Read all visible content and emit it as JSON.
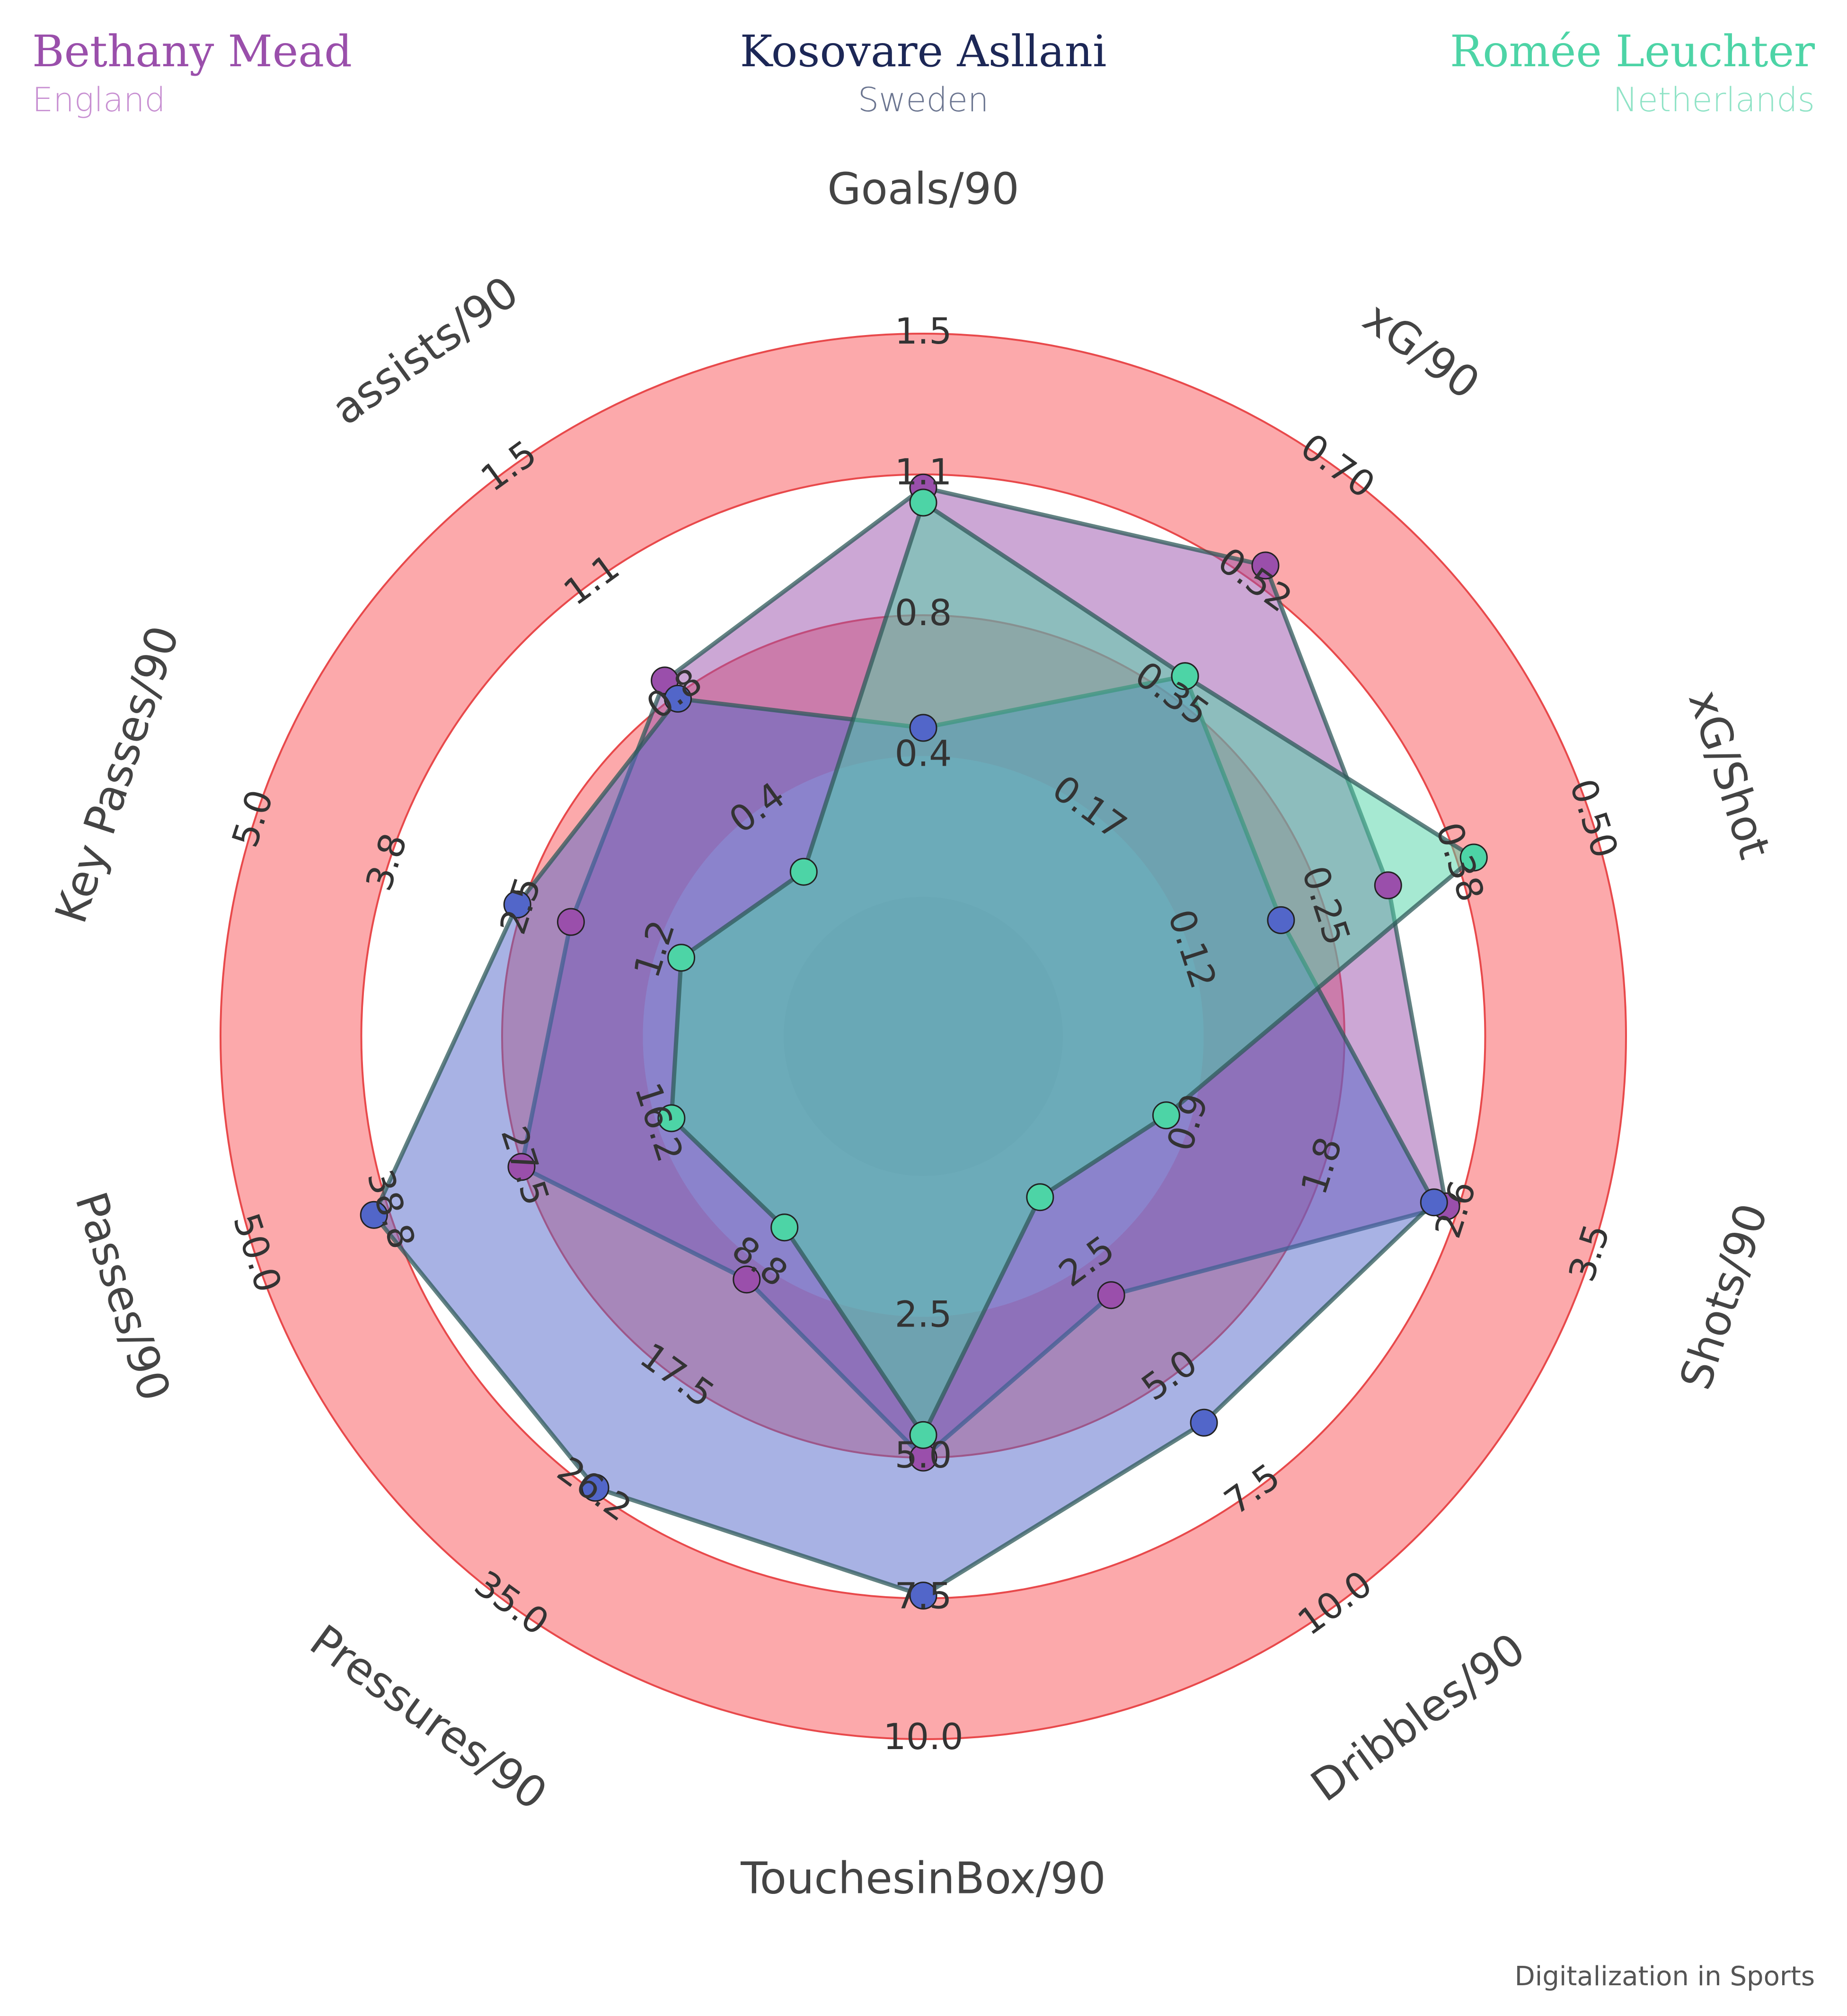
{
  "chart_data": {
    "type": "radar",
    "parameters": [
      "Goals/90",
      "xG/90",
      "xG/Shot",
      "Shots/90",
      "Dribbles/90",
      "TouchesinBox/90",
      "Pressures/90",
      "Passes/90",
      "Key Passes/90",
      "assists/90"
    ],
    "ticks": [
      [
        "0.4",
        "0.8",
        "1.1",
        "1.5"
      ],
      [
        "0.17",
        "0.35",
        "0.52",
        "0.70"
      ],
      [
        "0.12",
        "0.25",
        "0.38",
        "0.50"
      ],
      [
        "0.9",
        "1.8",
        "2.6",
        "3.5"
      ],
      [
        "2.5",
        "5.0",
        "7.5",
        "10.0"
      ],
      [
        "2.5",
        "5.0",
        "7.5",
        "10.0"
      ],
      [
        "8.8",
        "17.5",
        "26.2",
        "35.0"
      ],
      [
        "16.2",
        "27.5",
        "38.8",
        "50.0"
      ],
      [
        "1.2",
        "2.5",
        "3.8",
        "5.0"
      ],
      [
        "0.4",
        "0.8",
        "1.1",
        "1.5"
      ]
    ],
    "ranges": [
      [
        0,
        1.5
      ],
      [
        0,
        0.7
      ],
      [
        0,
        0.5
      ],
      [
        0,
        3.5
      ],
      [
        0,
        10
      ],
      [
        0,
        10
      ],
      [
        0,
        35
      ],
      [
        5,
        50
      ],
      [
        0,
        5
      ],
      [
        0,
        1.5
      ]
    ],
    "series": [
      {
        "name": "Bethany Mead",
        "country": "England",
        "color": "#9A4FAB",
        "values": [
          1.09,
          0.55,
          0.31,
          2.55,
          3.2,
          5.0,
          10.0,
          27.6,
          2.05,
          0.8
        ]
      },
      {
        "name": "Kosovare Asllani",
        "country": "Sweden",
        "color": "#5266C9",
        "values": [
          0.45,
          0.38,
          0.21,
          2.47,
          6.0,
          7.45,
          26.0,
          40.0,
          2.55,
          0.74
        ]
      },
      {
        "name": "Romée Leuchter",
        "country": "Netherlands",
        "color": "#4DD4A6",
        "values": [
          1.05,
          0.38,
          0.39,
          0.72,
          1.05,
          4.6,
          6.0,
          15.0,
          1.02,
          0.17
        ]
      }
    ],
    "rings": {
      "fill": "#FCA9AB",
      "stroke": "#E8494B",
      "inner_fill": "#D9D9D9"
    }
  },
  "credit": "Digitalization in Sports"
}
